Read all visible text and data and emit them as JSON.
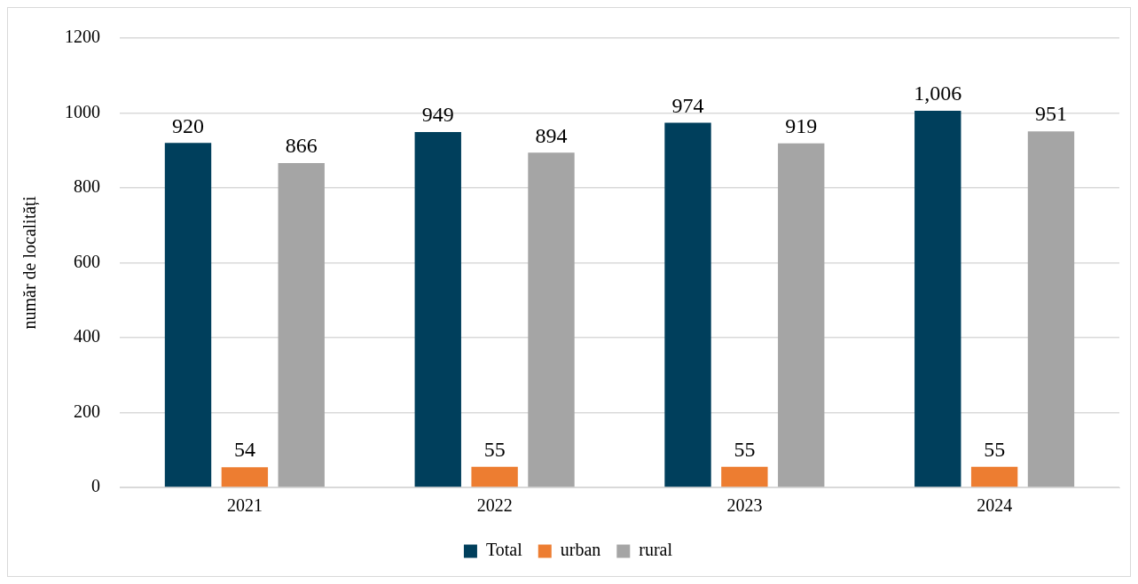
{
  "chart_data": {
    "type": "bar",
    "ylabel": "număr de localități",
    "categories": [
      "2021",
      "2022",
      "2023",
      "2024"
    ],
    "series": [
      {
        "name": "Total",
        "color": "#003f5c",
        "values": [
          920,
          949,
          974,
          1006
        ],
        "value_labels": [
          "920",
          "949",
          "974",
          "1,006"
        ]
      },
      {
        "name": "urban",
        "color": "#ed7d31",
        "values": [
          54,
          55,
          55,
          55
        ],
        "value_labels": [
          "54",
          "55",
          "55",
          "55"
        ]
      },
      {
        "name": "rural",
        "color": "#a5a5a5",
        "values": [
          866,
          894,
          919,
          951
        ],
        "value_labels": [
          "866",
          "894",
          "919",
          "951"
        ]
      }
    ],
    "ylim": [
      0,
      1200
    ],
    "yticks": [
      0,
      200,
      400,
      600,
      800,
      1000,
      1200
    ],
    "grid": "y",
    "legend": "bottom"
  }
}
